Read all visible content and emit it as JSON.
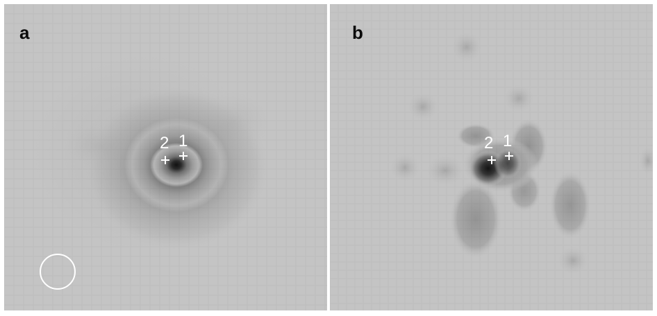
{
  "panels": [
    {
      "id": "a",
      "label": "a",
      "sources": [
        {
          "label": "2",
          "marker": "plus"
        },
        {
          "label": "1",
          "marker": "plus"
        }
      ],
      "beam_marker": "circle"
    },
    {
      "id": "b",
      "label": "b",
      "sources": [
        {
          "label": "2",
          "marker": "plus"
        },
        {
          "label": "1",
          "marker": "plus"
        }
      ]
    }
  ],
  "colors": {
    "background": "#c4c4c4",
    "emission_dark": "#111111",
    "marker": "#ffffff",
    "divider": "#ffffff"
  }
}
